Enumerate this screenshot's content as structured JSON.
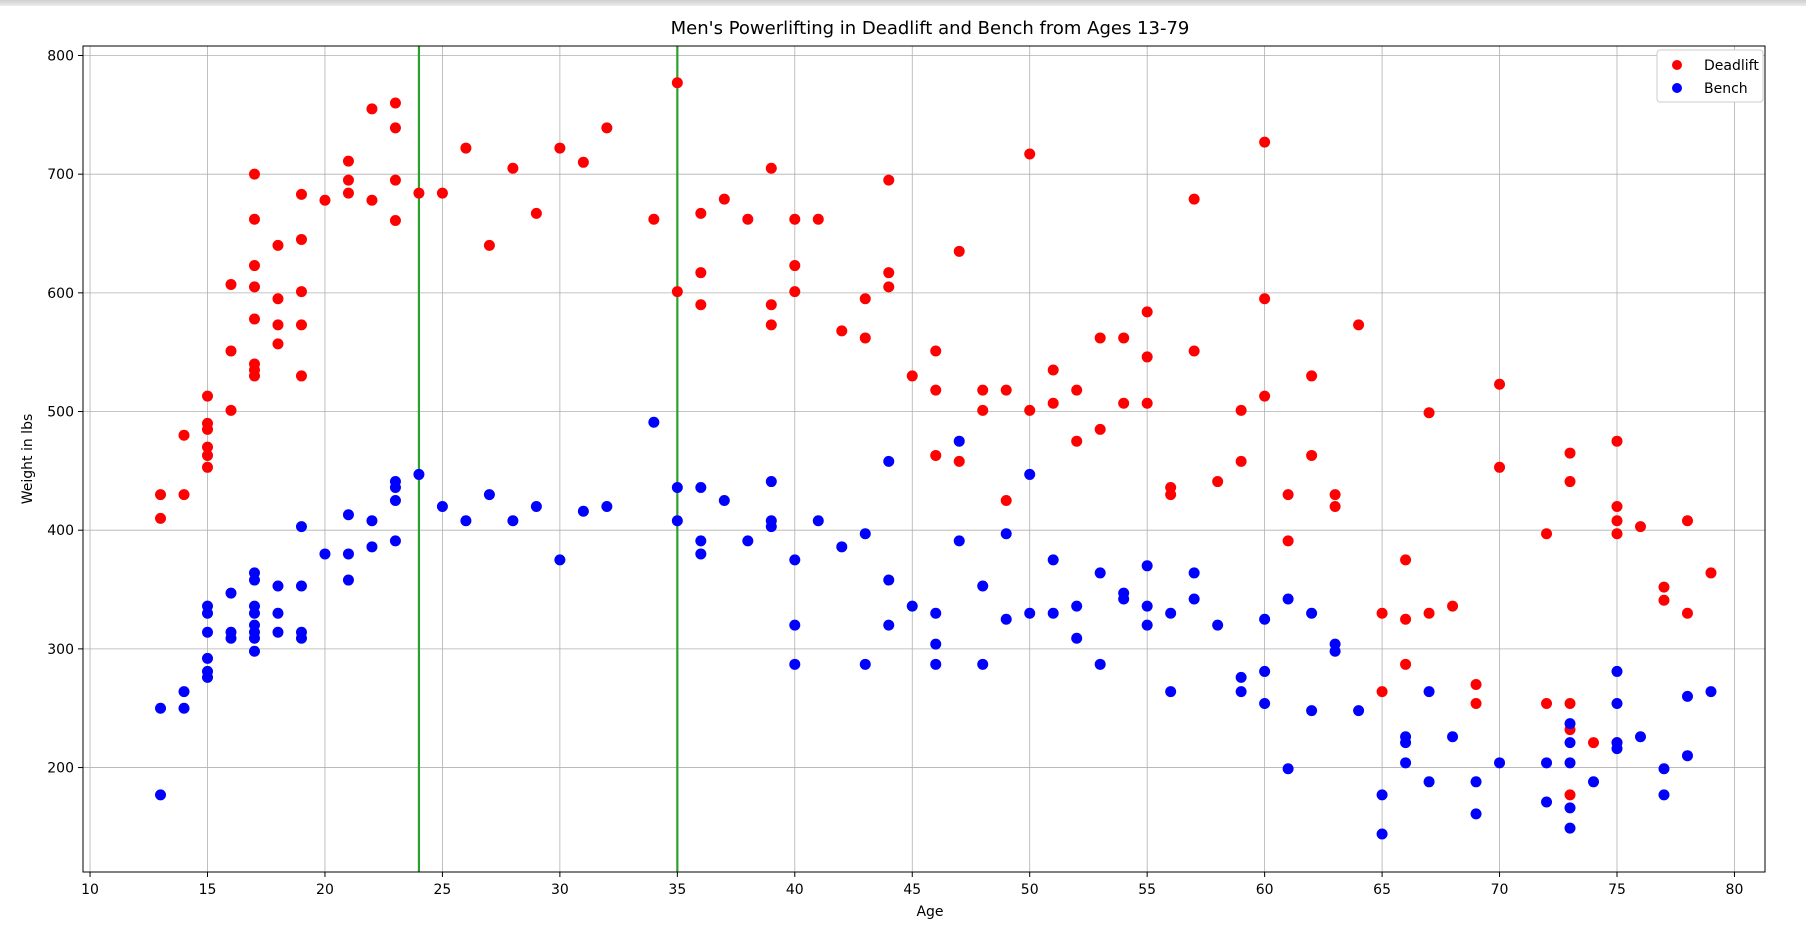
{
  "chart_data": {
    "type": "scatter",
    "title": "Men's Powerlifting in Deadlift and Bench from Ages 13-79",
    "xlabel": "Age",
    "ylabel": "Weight in lbs",
    "xlim": [
      9.7,
      81.3
    ],
    "ylim": [
      112,
      808
    ],
    "xticks": [
      10,
      15,
      20,
      25,
      30,
      35,
      40,
      45,
      50,
      55,
      60,
      65,
      70,
      75,
      80
    ],
    "yticks": [
      200,
      300,
      400,
      500,
      600,
      700,
      800
    ],
    "grid": true,
    "legend_position": "top-right",
    "vlines": [
      {
        "x": 24,
        "color": "#2ca02c"
      },
      {
        "x": 35,
        "color": "#2ca02c"
      }
    ],
    "series": [
      {
        "name": "Deadlift",
        "color": "#ff0000",
        "points": [
          [
            13,
            430
          ],
          [
            13,
            410
          ],
          [
            14,
            480
          ],
          [
            14,
            430
          ],
          [
            15,
            513
          ],
          [
            15,
            490
          ],
          [
            15,
            485
          ],
          [
            15,
            470
          ],
          [
            15,
            463
          ],
          [
            15,
            453
          ],
          [
            16,
            607
          ],
          [
            16,
            551
          ],
          [
            16,
            501
          ],
          [
            17,
            700
          ],
          [
            17,
            662
          ],
          [
            17,
            623
          ],
          [
            17,
            605
          ],
          [
            17,
            578
          ],
          [
            17,
            540
          ],
          [
            17,
            535
          ],
          [
            17,
            530
          ],
          [
            18,
            640
          ],
          [
            18,
            595
          ],
          [
            18,
            573
          ],
          [
            18,
            557
          ],
          [
            19,
            683
          ],
          [
            19,
            645
          ],
          [
            19,
            601
          ],
          [
            19,
            573
          ],
          [
            19,
            530
          ],
          [
            20,
            678
          ],
          [
            21,
            711
          ],
          [
            21,
            695
          ],
          [
            21,
            684
          ],
          [
            22,
            755
          ],
          [
            22,
            678
          ],
          [
            23,
            760
          ],
          [
            23,
            739
          ],
          [
            23,
            695
          ],
          [
            23,
            661
          ],
          [
            24,
            684
          ],
          [
            25,
            684
          ],
          [
            26,
            722
          ],
          [
            27,
            640
          ],
          [
            28,
            705
          ],
          [
            29,
            667
          ],
          [
            30,
            722
          ],
          [
            31,
            710
          ],
          [
            32,
            739
          ],
          [
            34,
            662
          ],
          [
            35,
            777
          ],
          [
            35,
            601
          ],
          [
            36,
            667
          ],
          [
            36,
            617
          ],
          [
            36,
            590
          ],
          [
            37,
            679
          ],
          [
            38,
            662
          ],
          [
            39,
            705
          ],
          [
            39,
            590
          ],
          [
            39,
            573
          ],
          [
            40,
            662
          ],
          [
            40,
            623
          ],
          [
            40,
            601
          ],
          [
            41,
            662
          ],
          [
            42,
            568
          ],
          [
            43,
            595
          ],
          [
            43,
            562
          ],
          [
            44,
            695
          ],
          [
            44,
            617
          ],
          [
            44,
            605
          ],
          [
            45,
            530
          ],
          [
            46,
            551
          ],
          [
            46,
            518
          ],
          [
            46,
            463
          ],
          [
            47,
            635
          ],
          [
            47,
            458
          ],
          [
            48,
            518
          ],
          [
            48,
            501
          ],
          [
            49,
            518
          ],
          [
            49,
            425
          ],
          [
            50,
            717
          ],
          [
            50,
            501
          ],
          [
            51,
            535
          ],
          [
            51,
            507
          ],
          [
            52,
            518
          ],
          [
            52,
            475
          ],
          [
            53,
            562
          ],
          [
            53,
            485
          ],
          [
            54,
            562
          ],
          [
            54,
            507
          ],
          [
            55,
            584
          ],
          [
            55,
            546
          ],
          [
            55,
            507
          ],
          [
            56,
            436
          ],
          [
            56,
            430
          ],
          [
            57,
            679
          ],
          [
            57,
            551
          ],
          [
            58,
            441
          ],
          [
            59,
            501
          ],
          [
            59,
            458
          ],
          [
            60,
            727
          ],
          [
            60,
            595
          ],
          [
            60,
            513
          ],
          [
            61,
            430
          ],
          [
            61,
            391
          ],
          [
            62,
            530
          ],
          [
            62,
            463
          ],
          [
            63,
            430
          ],
          [
            63,
            420
          ],
          [
            64,
            573
          ],
          [
            65,
            330
          ],
          [
            65,
            264
          ],
          [
            66,
            375
          ],
          [
            66,
            325
          ],
          [
            66,
            287
          ],
          [
            67,
            499
          ],
          [
            67,
            330
          ],
          [
            68,
            336
          ],
          [
            69,
            270
          ],
          [
            69,
            254
          ],
          [
            70,
            523
          ],
          [
            70,
            453
          ],
          [
            72,
            397
          ],
          [
            72,
            254
          ],
          [
            73,
            465
          ],
          [
            73,
            441
          ],
          [
            73,
            254
          ],
          [
            73,
            232
          ],
          [
            73,
            177
          ],
          [
            74,
            221
          ],
          [
            75,
            475
          ],
          [
            75,
            420
          ],
          [
            75,
            408
          ],
          [
            75,
            397
          ],
          [
            75,
            221
          ],
          [
            76,
            403
          ],
          [
            77,
            352
          ],
          [
            77,
            341
          ],
          [
            78,
            408
          ],
          [
            78,
            330
          ],
          [
            79,
            364
          ]
        ]
      },
      {
        "name": "Bench",
        "color": "#0000ff",
        "points": [
          [
            13,
            250
          ],
          [
            13,
            177
          ],
          [
            14,
            264
          ],
          [
            14,
            250
          ],
          [
            15,
            336
          ],
          [
            15,
            330
          ],
          [
            15,
            314
          ],
          [
            15,
            292
          ],
          [
            15,
            281
          ],
          [
            15,
            276
          ],
          [
            16,
            347
          ],
          [
            16,
            314
          ],
          [
            16,
            309
          ],
          [
            17,
            364
          ],
          [
            17,
            358
          ],
          [
            17,
            336
          ],
          [
            17,
            330
          ],
          [
            17,
            320
          ],
          [
            17,
            314
          ],
          [
            17,
            309
          ],
          [
            17,
            298
          ],
          [
            18,
            353
          ],
          [
            18,
            330
          ],
          [
            18,
            314
          ],
          [
            19,
            403
          ],
          [
            19,
            353
          ],
          [
            19,
            314
          ],
          [
            19,
            309
          ],
          [
            20,
            380
          ],
          [
            21,
            413
          ],
          [
            21,
            380
          ],
          [
            21,
            358
          ],
          [
            22,
            408
          ],
          [
            22,
            386
          ],
          [
            23,
            441
          ],
          [
            23,
            436
          ],
          [
            23,
            425
          ],
          [
            23,
            391
          ],
          [
            24,
            447
          ],
          [
            25,
            420
          ],
          [
            26,
            408
          ],
          [
            27,
            430
          ],
          [
            28,
            408
          ],
          [
            29,
            420
          ],
          [
            30,
            375
          ],
          [
            31,
            416
          ],
          [
            32,
            420
          ],
          [
            34,
            491
          ],
          [
            35,
            436
          ],
          [
            35,
            408
          ],
          [
            36,
            436
          ],
          [
            36,
            391
          ],
          [
            36,
            380
          ],
          [
            37,
            425
          ],
          [
            38,
            391
          ],
          [
            39,
            441
          ],
          [
            39,
            408
          ],
          [
            39,
            403
          ],
          [
            40,
            375
          ],
          [
            40,
            320
          ],
          [
            40,
            287
          ],
          [
            41,
            408
          ],
          [
            42,
            386
          ],
          [
            43,
            397
          ],
          [
            43,
            287
          ],
          [
            44,
            458
          ],
          [
            44,
            358
          ],
          [
            44,
            320
          ],
          [
            45,
            336
          ],
          [
            46,
            330
          ],
          [
            46,
            304
          ],
          [
            46,
            287
          ],
          [
            47,
            475
          ],
          [
            47,
            391
          ],
          [
            48,
            353
          ],
          [
            48,
            287
          ],
          [
            49,
            397
          ],
          [
            49,
            325
          ],
          [
            50,
            447
          ],
          [
            50,
            330
          ],
          [
            51,
            375
          ],
          [
            51,
            330
          ],
          [
            52,
            336
          ],
          [
            52,
            309
          ],
          [
            53,
            364
          ],
          [
            53,
            287
          ],
          [
            54,
            347
          ],
          [
            54,
            342
          ],
          [
            55,
            370
          ],
          [
            55,
            336
          ],
          [
            55,
            320
          ],
          [
            56,
            330
          ],
          [
            56,
            264
          ],
          [
            57,
            364
          ],
          [
            57,
            342
          ],
          [
            58,
            320
          ],
          [
            59,
            276
          ],
          [
            59,
            264
          ],
          [
            60,
            325
          ],
          [
            60,
            281
          ],
          [
            60,
            254
          ],
          [
            61,
            342
          ],
          [
            61,
            199
          ],
          [
            62,
            330
          ],
          [
            62,
            248
          ],
          [
            63,
            304
          ],
          [
            63,
            298
          ],
          [
            64,
            248
          ],
          [
            65,
            177
          ],
          [
            65,
            144
          ],
          [
            66,
            226
          ],
          [
            66,
            221
          ],
          [
            66,
            204
          ],
          [
            67,
            264
          ],
          [
            67,
            188
          ],
          [
            68,
            226
          ],
          [
            69,
            188
          ],
          [
            69,
            161
          ],
          [
            70,
            204
          ],
          [
            72,
            204
          ],
          [
            72,
            171
          ],
          [
            73,
            237
          ],
          [
            73,
            221
          ],
          [
            73,
            204
          ],
          [
            73,
            166
          ],
          [
            73,
            149
          ],
          [
            74,
            188
          ],
          [
            75,
            281
          ],
          [
            75,
            254
          ],
          [
            75,
            221
          ],
          [
            75,
            216
          ],
          [
            76,
            226
          ],
          [
            77,
            199
          ],
          [
            77,
            177
          ],
          [
            78,
            260
          ],
          [
            78,
            210
          ],
          [
            79,
            264
          ]
        ]
      }
    ]
  }
}
